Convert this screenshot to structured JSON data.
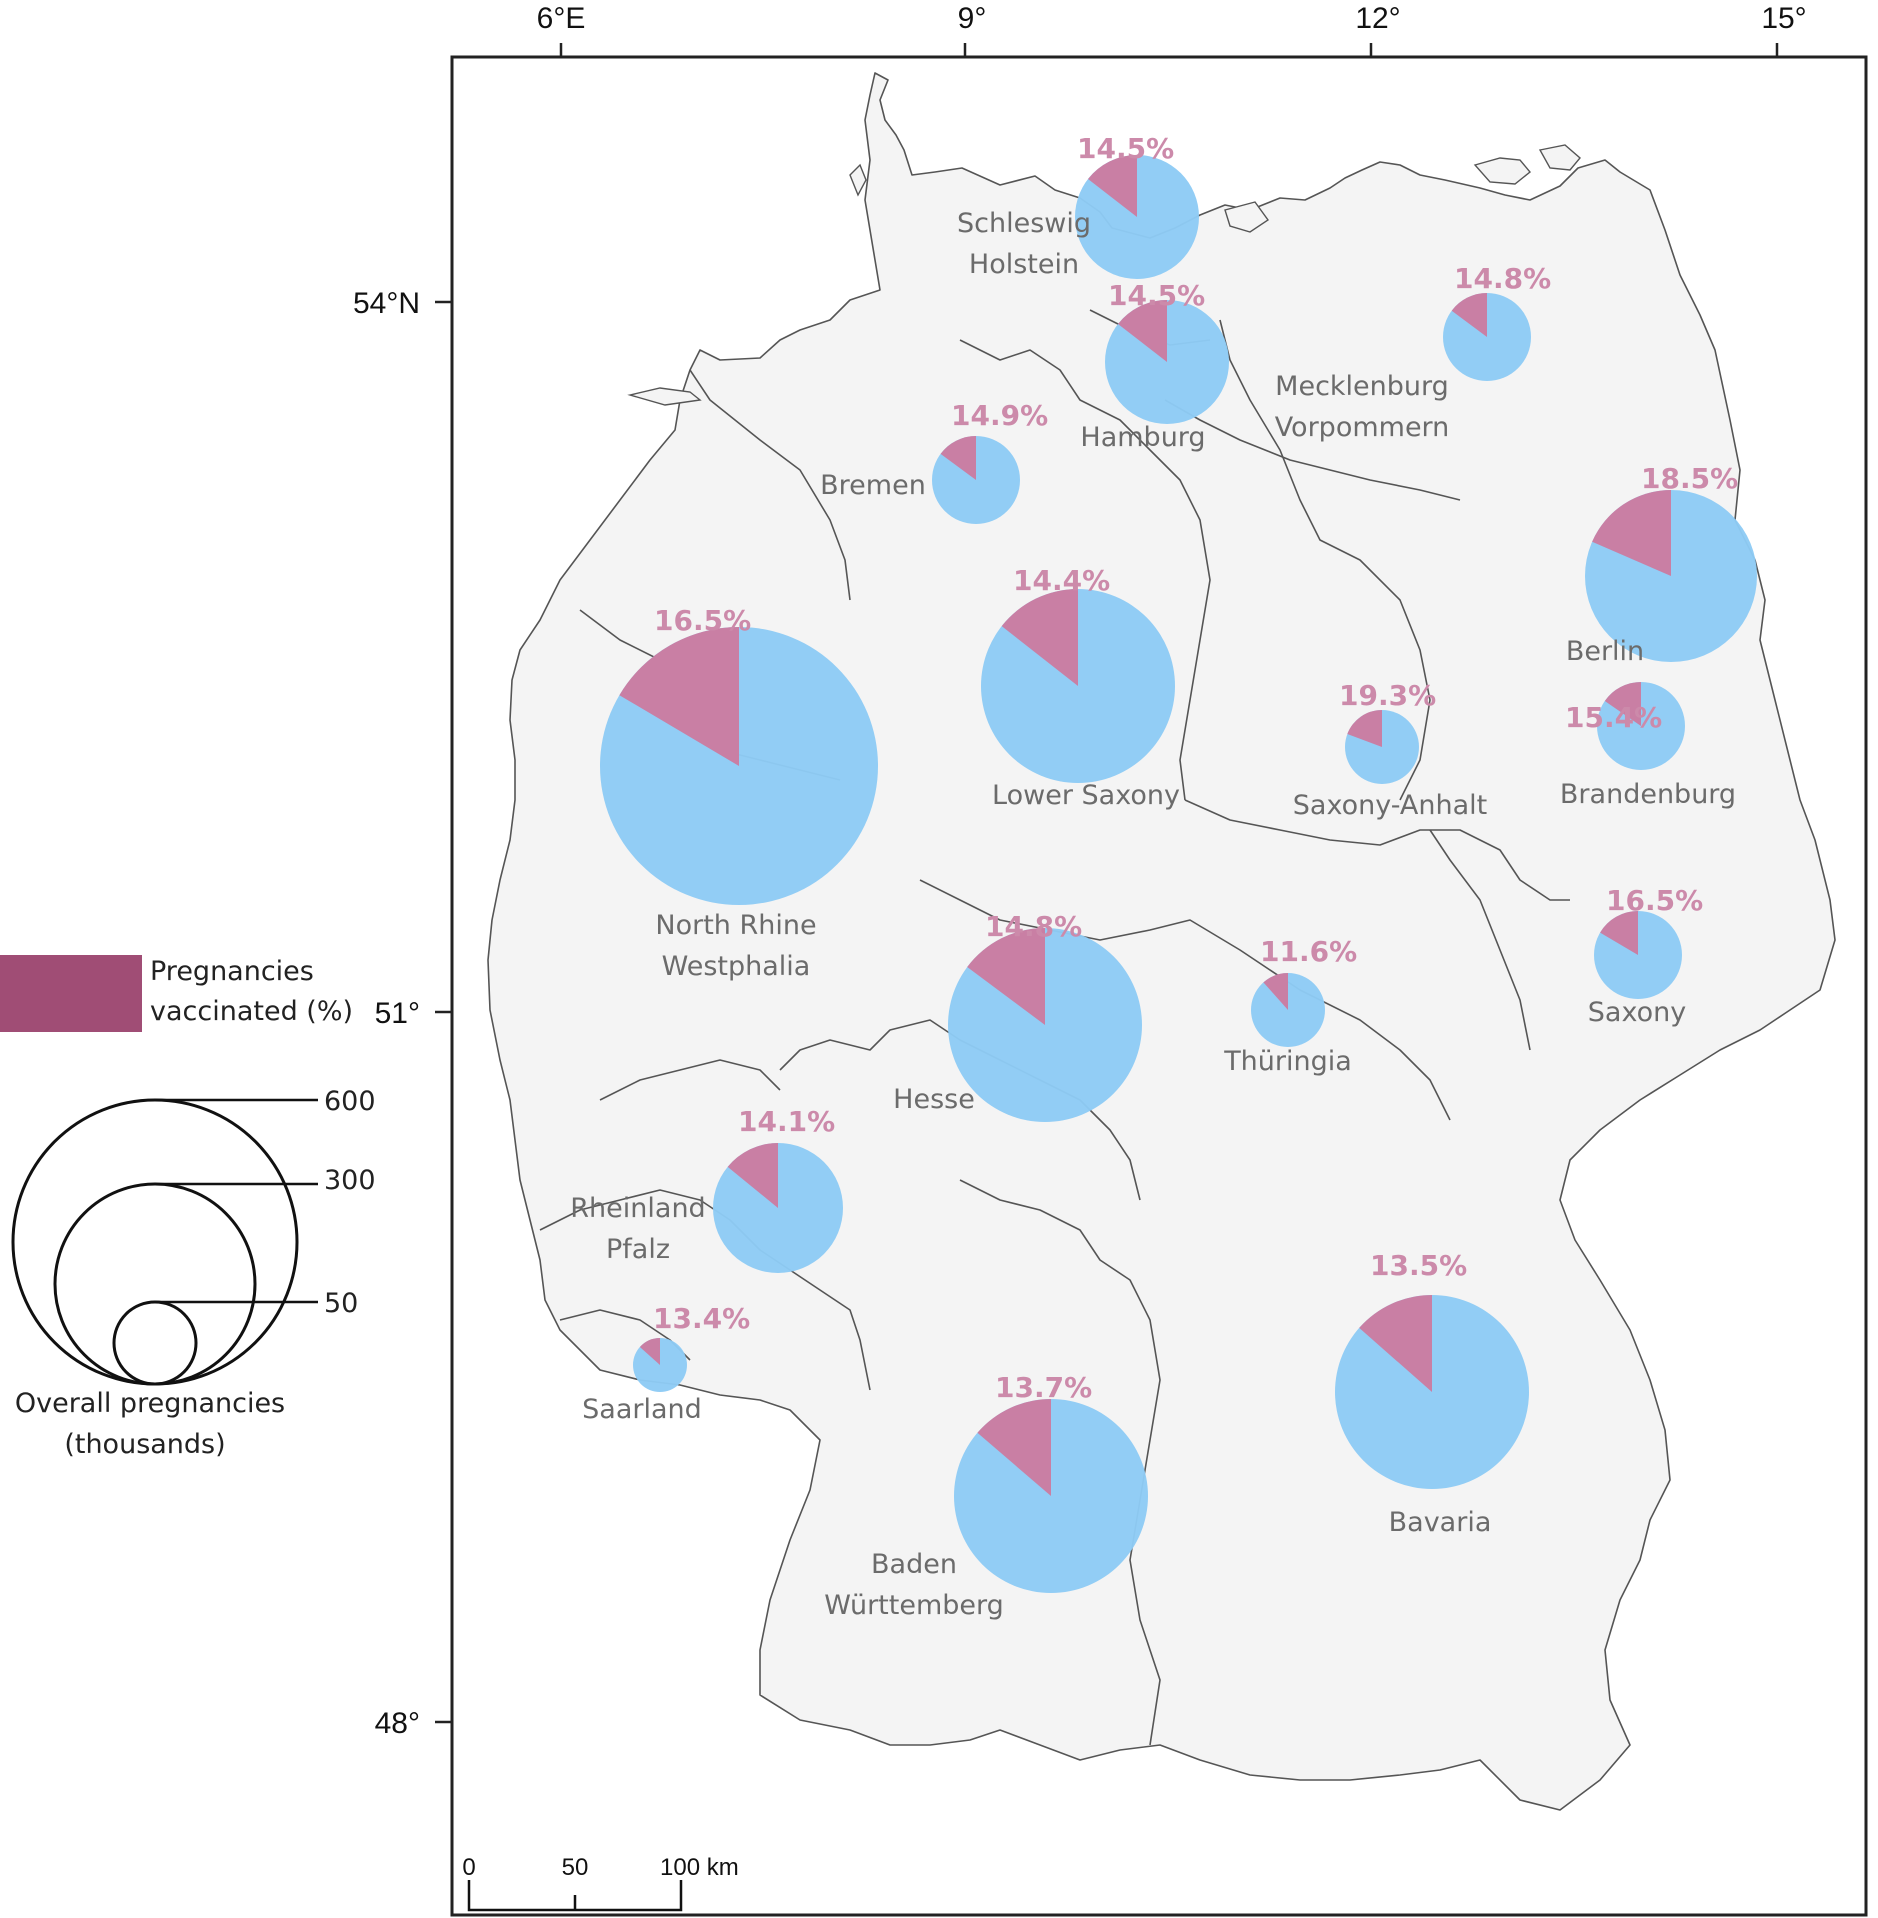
{
  "axes": {
    "x_ticks": [
      "6°E",
      "9°",
      "12°",
      "15°"
    ],
    "y_ticks": [
      "54°N",
      "51°",
      "48°"
    ]
  },
  "colors": {
    "total": "#8ecbf5",
    "vaccinated": "#c97fa4",
    "legend_vaccinated": "#a04d75",
    "land": "#f4f4f4",
    "border": "#555555",
    "pct_label": "#cc8aaa",
    "region_label": "#6b6b6b"
  },
  "legend": {
    "swatch_label_1": "Pregnancies",
    "swatch_label_2": "vaccinated (%)",
    "size_values": [
      "600",
      "300",
      "50"
    ],
    "size_title_1": "Overall pregnancies",
    "size_title_2": "(thousands)"
  },
  "scale_bar": {
    "ticks": [
      "0",
      "50",
      "100 km"
    ]
  },
  "map_data": {
    "regions": [
      {
        "name": "Schleswig Holstein",
        "label_lines": [
          "Schleswig",
          "Holstein"
        ],
        "pct_label": "14.5%",
        "pct": 14.5,
        "size_level": 3
      },
      {
        "name": "Hamburg",
        "label_lines": [
          "Hamburg"
        ],
        "pct_label": "14.5%",
        "pct": 14.5,
        "size_level": 3
      },
      {
        "name": "Mecklenburg Vorpommern",
        "label_lines": [
          "Mecklenburg",
          "Vorpommern"
        ],
        "pct_label": "14.8%",
        "pct": 14.8,
        "size_level": 2
      },
      {
        "name": "Bremen",
        "label_lines": [
          "Bremen"
        ],
        "pct_label": "14.9%",
        "pct": 14.9,
        "size_level": 2
      },
      {
        "name": "Berlin",
        "label_lines": [
          "Berlin"
        ],
        "pct_label": "18.5%",
        "pct": 18.5,
        "size_level": 5
      },
      {
        "name": "Lower Saxony",
        "label_lines": [
          "Lower Saxony"
        ],
        "pct_label": "14.4%",
        "pct": 14.4,
        "size_level": 6
      },
      {
        "name": "North Rhine Westphalia",
        "label_lines": [
          "North Rhine",
          "Westphalia"
        ],
        "pct_label": "16.5%",
        "pct": 16.5,
        "size_level": 7
      },
      {
        "name": "Saxony-Anhalt",
        "label_lines": [
          "Saxony-Anhalt"
        ],
        "pct_label": "19.3%",
        "pct": 19.3,
        "size_level": 1
      },
      {
        "name": "Brandenburg",
        "label_lines": [
          "Brandenburg"
        ],
        "pct_label": "15.4%",
        "pct": 15.4,
        "size_level": 2
      },
      {
        "name": "Hesse",
        "label_lines": [
          "Hesse"
        ],
        "pct_label": "14.8%",
        "pct": 14.8,
        "size_level": 6
      },
      {
        "name": "Thüringia",
        "label_lines": [
          "Thüringia"
        ],
        "pct_label": "11.6%",
        "pct": 11.6,
        "size_level": 1
      },
      {
        "name": "Saxony",
        "label_lines": [
          "Saxony"
        ],
        "pct_label": "16.5%",
        "pct": 16.5,
        "size_level": 2
      },
      {
        "name": "Rheinland Pfalz",
        "label_lines": [
          "Rheinland",
          "Pfalz"
        ],
        "pct_label": "14.1%",
        "pct": 14.1,
        "size_level": 4
      },
      {
        "name": "Saarland",
        "label_lines": [
          "Saarland"
        ],
        "pct_label": "13.4%",
        "pct": 13.4,
        "size_level": 0
      },
      {
        "name": "Baden Württemberg",
        "label_lines": [
          "Baden",
          "Württemberg"
        ],
        "pct_label": "13.7%",
        "pct": 13.7,
        "size_level": 6
      },
      {
        "name": "Bavaria",
        "label_lines": [
          "Bavaria"
        ],
        "pct_label": "13.5%",
        "pct": 13.5,
        "size_level": 6
      }
    ]
  }
}
